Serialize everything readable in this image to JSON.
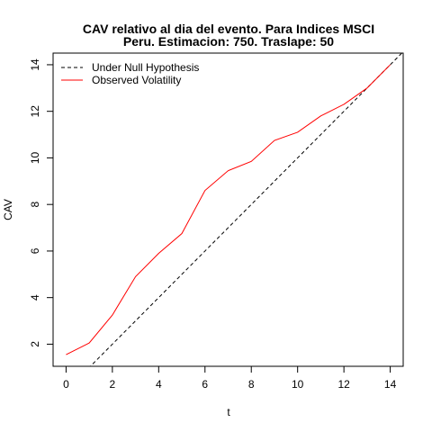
{
  "chart_data": {
    "type": "line",
    "title": "CAV relativo al dia del evento. Para Indices MSCI",
    "subtitle": "Peru. Estimacion: 750. Traslape: 50",
    "xlabel": "t",
    "ylabel": "CAV",
    "xlim": [
      -0.56,
      14.56
    ],
    "ylim": [
      1.05,
      14.5
    ],
    "xticks": [
      0,
      2,
      4,
      6,
      8,
      10,
      12,
      14
    ],
    "yticks": [
      2,
      4,
      6,
      8,
      10,
      12,
      14
    ],
    "grid": false,
    "legend_position": "top-left",
    "series": [
      {
        "name": "Under Null Hypothesis",
        "color": "#000000",
        "dash": "dashed",
        "x": [
          0,
          1,
          2,
          3,
          4,
          5,
          6,
          7,
          8,
          9,
          10,
          11,
          12,
          13,
          14,
          14.56
        ],
        "y": [
          0,
          1,
          2,
          3,
          4,
          5,
          6,
          7,
          8,
          9,
          10,
          11,
          12,
          13,
          14,
          14.56
        ]
      },
      {
        "name": "Observed Volatility",
        "color": "#ff0000",
        "dash": "solid",
        "x": [
          0,
          1,
          2,
          3,
          4,
          5,
          6,
          7,
          8,
          9,
          10,
          11,
          12,
          13,
          14
        ],
        "y": [
          1.55,
          2.05,
          3.25,
          4.9,
          5.9,
          6.75,
          8.6,
          9.45,
          9.85,
          10.75,
          11.1,
          11.8,
          12.3,
          13.0,
          14.0
        ]
      }
    ]
  }
}
